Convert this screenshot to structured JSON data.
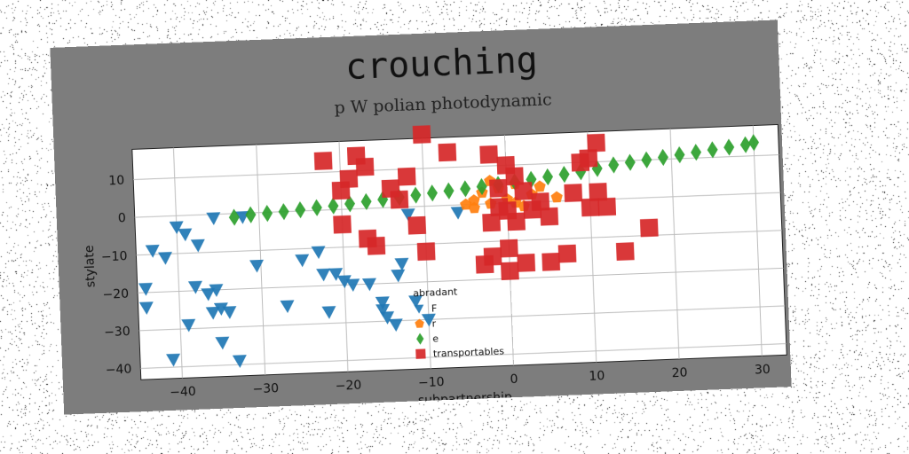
{
  "chart_data": {
    "type": "scatter",
    "title": "crouching",
    "subtitle": "p W polian photodynamic",
    "xlabel": "subpartnership",
    "ylabel": "stylate",
    "xlim": [
      -45,
      33
    ],
    "ylim": [
      -43,
      18
    ],
    "xticks": [
      -40,
      -30,
      -20,
      -10,
      0,
      10,
      20,
      30
    ],
    "yticks": [
      -40,
      -30,
      -20,
      -10,
      0,
      10
    ],
    "grid": true,
    "legend": {
      "title": "abradant",
      "placement": "lower-center"
    },
    "series": [
      {
        "name": "F",
        "marker": "triangle-down",
        "color": "#1f77b4",
        "points": [
          [
            -43,
            -9
          ],
          [
            -41.5,
            -11
          ],
          [
            -44,
            -19
          ],
          [
            -44,
            -24
          ],
          [
            -41,
            -38
          ],
          [
            -40,
            -3
          ],
          [
            -39,
            -5
          ],
          [
            -39,
            -29
          ],
          [
            -38,
            -19
          ],
          [
            -37.5,
            -8
          ],
          [
            -36.5,
            -21
          ],
          [
            -36,
            -26
          ],
          [
            -35.5,
            -20
          ],
          [
            -35,
            -25
          ],
          [
            -35,
            -34
          ],
          [
            -34,
            -26
          ],
          [
            -33,
            -39
          ],
          [
            -30.5,
            -14
          ],
          [
            -27,
            -25
          ],
          [
            -25,
            -13
          ],
          [
            -23,
            -11
          ],
          [
            -22.5,
            -17
          ],
          [
            -22,
            -27
          ],
          [
            -21,
            -17
          ],
          [
            -20,
            -19
          ],
          [
            -19,
            -20
          ],
          [
            -17,
            -20
          ],
          [
            -15.5,
            -25
          ],
          [
            -15.5,
            -27
          ],
          [
            -15,
            -29
          ],
          [
            -14,
            -31
          ],
          [
            -13.5,
            -18
          ],
          [
            -13,
            -15
          ],
          [
            -12,
            -2
          ],
          [
            -11.5,
            -25
          ],
          [
            -10,
            -30
          ],
          [
            -6,
            -2
          ],
          [
            -35.5,
            -1
          ],
          [
            -32,
            -1
          ]
        ]
      },
      {
        "name": "r",
        "marker": "pentagon",
        "color": "#ff7f0e",
        "points": [
          [
            -5,
            0
          ],
          [
            -4,
            1
          ],
          [
            -3,
            3
          ],
          [
            -2,
            6
          ],
          [
            -1,
            4
          ],
          [
            -2,
            0
          ],
          [
            -4,
            -1
          ],
          [
            0,
            1
          ],
          [
            1,
            5
          ],
          [
            1,
            0
          ],
          [
            3,
            2
          ],
          [
            4,
            4
          ],
          [
            6,
            1
          ],
          [
            2,
            -1
          ]
        ]
      },
      {
        "name": "e",
        "marker": "diamond",
        "color": "#2ca02c",
        "points": [
          [
            -33,
            -1
          ],
          [
            -31,
            -0.5
          ],
          [
            -29,
            -0.3
          ],
          [
            -27,
            0
          ],
          [
            -25,
            0.3
          ],
          [
            -23,
            0.7
          ],
          [
            -21,
            1
          ],
          [
            -19,
            1.4
          ],
          [
            -17,
            1.8
          ],
          [
            -15,
            2.2
          ],
          [
            -13,
            2.6
          ],
          [
            -11,
            3
          ],
          [
            -9,
            3.4
          ],
          [
            -7,
            3.8
          ],
          [
            -5,
            4.2
          ],
          [
            -3,
            4.6
          ],
          [
            -1,
            5
          ],
          [
            1,
            5.5
          ],
          [
            3,
            6
          ],
          [
            5,
            6.5
          ],
          [
            7,
            7
          ],
          [
            9,
            7.5
          ],
          [
            11,
            8.2
          ],
          [
            13,
            9
          ],
          [
            15,
            9.5
          ],
          [
            17,
            10
          ],
          [
            19,
            10.5
          ],
          [
            21,
            11
          ],
          [
            23,
            11.5
          ],
          [
            25,
            12
          ],
          [
            27,
            12.5
          ],
          [
            29,
            13
          ],
          [
            30,
            13.5
          ]
        ]
      },
      {
        "name": "transportables",
        "marker": "square",
        "color": "#d62728",
        "points": [
          [
            -22,
            13
          ],
          [
            -18,
            14
          ],
          [
            -17,
            11
          ],
          [
            -19,
            8
          ],
          [
            -20,
            5
          ],
          [
            -14,
            5
          ],
          [
            -13,
            2
          ],
          [
            -12,
            8
          ],
          [
            -10,
            19
          ],
          [
            -7,
            14
          ],
          [
            -20,
            -4
          ],
          [
            -17,
            -8
          ],
          [
            -16,
            -10
          ],
          [
            -11,
            -5
          ],
          [
            -10,
            -12
          ],
          [
            -2,
            13
          ],
          [
            0,
            10
          ],
          [
            1,
            7
          ],
          [
            -1,
            4
          ],
          [
            0,
            -2
          ],
          [
            -2,
            -5
          ],
          [
            1,
            -5
          ],
          [
            3,
            -2
          ],
          [
            5,
            -4
          ],
          [
            0,
            -12
          ],
          [
            -2,
            -14
          ],
          [
            -3,
            -16
          ],
          [
            0,
            -18
          ],
          [
            2,
            -16
          ],
          [
            5,
            -16
          ],
          [
            7,
            -14
          ],
          [
            8,
            2
          ],
          [
            9,
            10
          ],
          [
            10,
            11
          ],
          [
            11,
            15
          ],
          [
            11,
            2
          ],
          [
            10,
            -2
          ],
          [
            12,
            -2
          ],
          [
            14,
            -14
          ],
          [
            17,
            -8
          ],
          [
            2,
            3
          ],
          [
            -1,
            -1
          ],
          [
            4,
            0
          ]
        ]
      }
    ]
  }
}
